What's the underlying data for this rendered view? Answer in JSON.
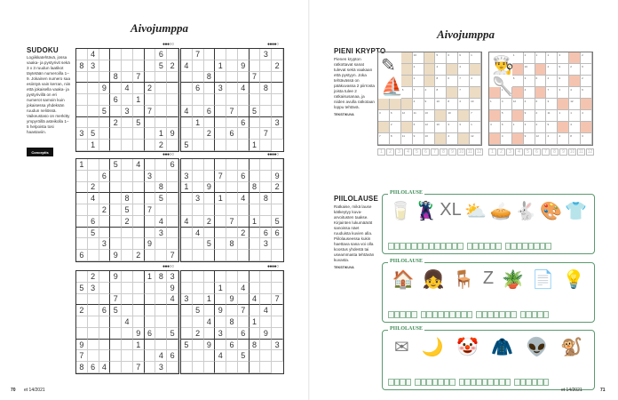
{
  "left_page": {
    "title": "Aivojumppa",
    "sudoku_heading": "SUDOKU",
    "sudoku_text": "Logiikkatehtävä, jossa vaaka- ja pystyrivit sekä 3 x 3 ruudun laatikot täytetään numeroilla 1–9. Jokainen numero saa esiintyä vain kerran, niin että jokaisella vaaka- ja pystyrivillä on eri numerot samoin kuin jokaisessa yhdeksän ruudun neliössä. Vaikeustaso on merkitty ympyröillä asteikolla 1–5 helpoista tosi haastaviin.",
    "logo_text": "Conceptis",
    "puzzles": [
      {
        "difficulty": "●●●○○",
        "grid": ".4.....6.83.....52...8.7.....9.4.2.....6.1.....5.3.7.....2.5...35.....19.1.....2."
      },
      {
        "difficulty": "●●●●○",
        "grid": ".7.....3.4..1.9..2..8...7...6.3.4.8..........4.6.7.5...1...6..3..2.6..7.5.....1."
      },
      {
        "difficulty": "●●●○○",
        "grid": "1..5.4..6..6...3...2.....8..4..8..5...2.5.7...6..2..4..5.....3...3...9..6..9.2..7"
      },
      {
        "difficulty": "●●●●○",
        "grid": ".........3..7.6..91.9...8.2.3.1.4.8..........4.2.7.1.5.4...2.66..5.8..3........."
      },
      {
        "difficulty": "●●●○○",
        "grid": ".2.9..18353......9...7....42.65.........4.........96.59....1...7......46864..7.3."
      },
      {
        "difficulty": "●●●●○",
        "grid": "............1.4...3.1.9.4.7.5.9.7.4...4.8.1...2.3.6.9.5.9.6.8.3...4.5..........."
      }
    ],
    "footer": {
      "page": "70",
      "issue": "et 14/2021"
    }
  },
  "right_page": {
    "title": "Aivojumppa",
    "crypto_heading": "PIENI KRYPTO",
    "crypto_text": "Pienen krypton ratkottavat sanat tulevat sekä vaakaan että pystyyn. Joka tehtävässä on pääkuvassa 2 piirrosta joista tulee 2 ratkaisusanaa, ja niiden avulla ratkotaan loppu tehtävä.",
    "crypto_credit": "TEKSTIKUVA",
    "crypto_strip": [
      "1",
      "2",
      "3",
      "4",
      "5",
      "6",
      "7",
      "8",
      "9",
      "10",
      "11",
      "12"
    ],
    "shade_colors": [
      "#ecdcc4",
      "#f5c4b0"
    ],
    "crypto_grids": [
      {
        "rows": [
          [
            "img",
            "img",
            "S",
            "10",
            "S",
            "5",
            "6",
            "9",
            "1"
          ],
          [
            "img",
            "img",
            "S",
            "2",
            "S",
            "4",
            "S",
            "4",
            "S"
          ],
          [
            "img",
            "img",
            "S",
            "1",
            "S",
            "8",
            "6",
            "7",
            "4"
          ],
          [
            "img",
            "img",
            "6",
            "7",
            "4",
            "8",
            "S",
            "7",
            "S"
          ],
          [
            "S",
            "S",
            "S",
            "4",
            "9",
            "10",
            "8",
            "4",
            "10"
          ],
          [
            "3",
            "6",
            "12",
            "11",
            "10",
            "S",
            "10",
            "S",
            "7"
          ],
          [
            "S",
            "2",
            "S",
            "6",
            "12",
            "10",
            "3",
            "3",
            "1"
          ],
          [
            "7",
            "8",
            "11",
            "9",
            "10",
            "S",
            "4",
            "S",
            "12"
          ]
        ]
      },
      {
        "rows": [
          [
            "img",
            "img",
            "1",
            "2",
            "1",
            "1",
            "3",
            "S",
            "2"
          ],
          [
            "img",
            "img",
            "S",
            "10",
            "S",
            "4",
            "9",
            "2",
            "9"
          ],
          [
            "img",
            "img",
            "6",
            "3",
            "6",
            "4",
            "9",
            "S",
            "2"
          ],
          [
            "S",
            "1",
            "S",
            "4",
            "S",
            "7",
            "3",
            "4",
            "9"
          ],
          [
            "1",
            "4",
            "12",
            "4",
            "6",
            "3",
            "S",
            "12",
            "S"
          ],
          [
            "S",
            "5",
            "S",
            "9",
            "2",
            "11",
            "1",
            "1",
            "4"
          ],
          [
            "4",
            "6",
            "1",
            "3",
            "2",
            "9",
            "S",
            "4",
            "S"
          ],
          [
            "S",
            "4",
            "S",
            "9",
            "12",
            "4",
            "4",
            "8",
            "3"
          ]
        ]
      }
    ],
    "piilolause_heading": "PIILOLAUSE",
    "piilolause_text": "Ratkaise, mikä lause kätkeytyy kuva-arvoitusten taakse. Kirjainten lukumäärät sanoissa näet ruuduista kuvien alla. Piilolauseessa kukin haettava sana voi olla koostus yhdestä tai useammasta tehtävän kuvasta.",
    "piilolause_credit": "TEKSTIKUVA",
    "piilolause_boxes": [
      {
        "label": "PIILOLAUSE",
        "pictures": [
          "🥛",
          "🦹",
          "XL",
          "⛅",
          "🥧",
          "🐇",
          "🎨",
          "👕"
        ],
        "groups": [
          13,
          6,
          8
        ]
      },
      {
        "label": "PIILOLAUSE",
        "pictures": [
          "🏠",
          "👧",
          "🪑",
          "Z",
          "🪴",
          "📄",
          "💡"
        ],
        "groups": [
          5,
          9,
          7,
          5
        ]
      },
      {
        "label": "PIILOLAUSE",
        "pictures": [
          "✉",
          "🌙",
          "🤡",
          "🧥",
          "👽",
          "🐒"
        ],
        "groups": [
          4,
          7,
          9,
          6
        ]
      }
    ],
    "footer": {
      "page": "71",
      "issue": "et 14/2021"
    }
  }
}
